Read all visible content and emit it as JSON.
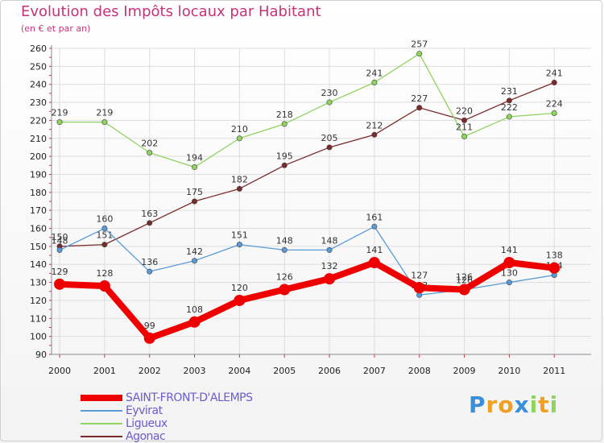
{
  "chart_data": {
    "type": "line",
    "title": "Evolution des Impôts locaux par Habitant",
    "subtitle": "(en € et par an)",
    "xlabel": "",
    "ylabel": "",
    "ylim": [
      90,
      260
    ],
    "yticks": [
      90,
      100,
      110,
      120,
      130,
      140,
      150,
      160,
      170,
      180,
      190,
      200,
      210,
      220,
      230,
      240,
      250,
      260
    ],
    "grid": true,
    "legend_position": "bottom-left",
    "x": [
      "2000",
      "2001",
      "2002",
      "2003",
      "2004",
      "2005",
      "2006",
      "2007",
      "2008",
      "2009",
      "2010",
      "2011"
    ],
    "series": [
      {
        "name": "SAINT-FRONT-D'ALEMPS",
        "color": "#ee0000",
        "values": [
          129,
          128,
          99,
          108,
          120,
          126,
          132,
          141,
          127,
          126,
          141,
          138
        ]
      },
      {
        "name": "Eyvirat",
        "color": "#5a9ad8",
        "values": [
          148,
          160,
          136,
          142,
          151,
          148,
          148,
          161,
          123,
          126,
          130,
          134
        ]
      },
      {
        "name": "Ligueux",
        "color": "#8fd45e",
        "values": [
          219,
          219,
          202,
          194,
          210,
          218,
          230,
          241,
          257,
          211,
          222,
          224
        ]
      },
      {
        "name": "Agonac",
        "color": "#7a2a2a",
        "values": [
          150,
          151,
          163,
          175,
          182,
          195,
          205,
          212,
          227,
          220,
          231,
          241
        ]
      }
    ]
  },
  "logo": {
    "text": "Proxiti",
    "letters": [
      {
        "ch": "P",
        "color": "#3a8fd8"
      },
      {
        "ch": "r",
        "color": "#f0a020"
      },
      {
        "ch": "o",
        "color": "#f0a020"
      },
      {
        "ch": "x",
        "color": "#3a8fd8"
      },
      {
        "ch": "i",
        "color": "#8fd45e"
      },
      {
        "ch": "t",
        "color": "#f0a020"
      },
      {
        "ch": "i",
        "color": "#8fd45e"
      }
    ]
  }
}
